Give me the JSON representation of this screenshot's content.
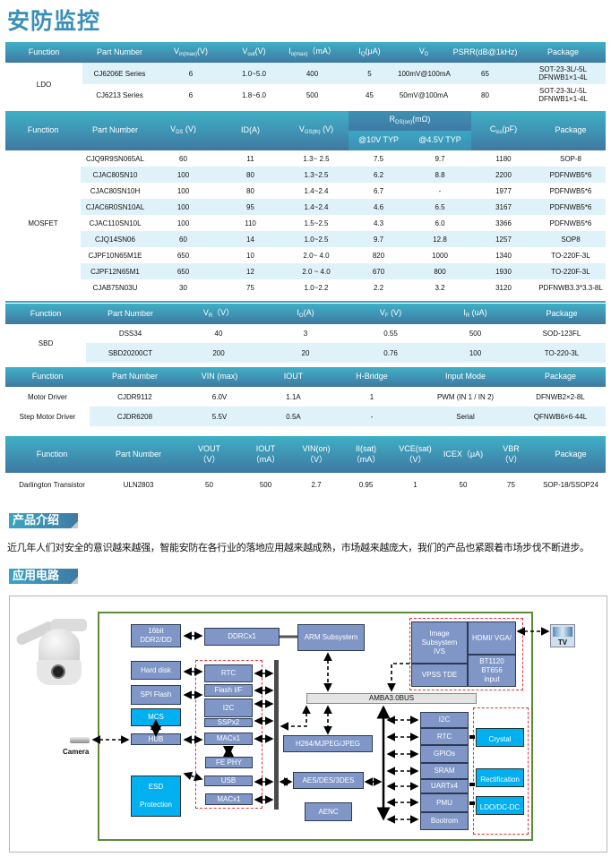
{
  "page_title": "安防监控",
  "tables": [
    {
      "id": "ldo",
      "function": "LDO",
      "headers": [
        {
          "label": "Function"
        },
        {
          "label": "Part Number"
        },
        {
          "label": "V",
          "sub": "in(max)",
          "unit": "(V)"
        },
        {
          "label": "V",
          "sub": "out",
          "unit": "(V)"
        },
        {
          "label": "I",
          "sub": "o(max)",
          "unit": "（mA）"
        },
        {
          "label": "I",
          "sub": "Q",
          "unit": "(μA)"
        },
        {
          "label": "V",
          "sub": "D"
        },
        {
          "label": "PSRR(dB@1kHz)"
        },
        {
          "label": "Package"
        }
      ],
      "rows": [
        [
          "CJ6206E Series",
          "6",
          "1.0~5.0",
          "400",
          "5",
          "100mV@100mA",
          "65",
          "SOT-23-3L/-5L\nDFNWB1×1-4L"
        ],
        [
          "CJ6213 Series",
          "6",
          "1.8~6.0",
          "500",
          "45",
          "50mV@100mA",
          "80",
          "SOT-23-3L/-5L\nDFNWB1×1-4L"
        ]
      ]
    },
    {
      "id": "mosfet",
      "function": "MOSFET",
      "headers": [
        {
          "label": "Function"
        },
        {
          "label": "Part  Number"
        },
        {
          "label": "V",
          "sub": "DS",
          "unit": " (V)"
        },
        {
          "label": "ID(A)"
        },
        {
          "label": "V",
          "sub": "GS(th)",
          "unit": " (V)"
        },
        {
          "label": "R",
          "sub": "DS(on)",
          "unit": "(mΩ)",
          "children": [
            {
              "label": "@10V  TYP"
            },
            {
              "label": "@4.5V TYP"
            }
          ]
        },
        {
          "label": "C",
          "sub": "iss",
          "unit": "(pF)"
        },
        {
          "label": "Package"
        }
      ],
      "rows": [
        [
          "CJQ9R9SN065AL",
          "60",
          "11",
          "1.3~ 2.5",
          "7.5",
          "9.7",
          "1180",
          "SOP-8"
        ],
        [
          "CJAC80SN10",
          "100",
          "80",
          "1.3~2.5",
          "6.2",
          "8.8",
          "2200",
          "PDFNWB5*6"
        ],
        [
          "CJAC80SN10H",
          "100",
          "80",
          "1.4~2.4",
          "6.7",
          "-",
          "1977",
          "PDFNWB5*6"
        ],
        [
          "CJAC6R0SN10AL",
          "100",
          "95",
          "1.4~2.4",
          "4.6",
          "6.5",
          "3167",
          "PDFNWB5*6"
        ],
        [
          "CJAC110SN10L",
          "100",
          "110",
          "1.5~2.5",
          "4.3",
          "6.0",
          "3366",
          "PDFNWB5*6"
        ],
        [
          "CJQ14SN06",
          "60",
          "14",
          "1.0~2.5",
          "9.7",
          "12.8",
          "1257",
          "SOP8"
        ],
        [
          "CJPF10N65M1E",
          "650",
          "10",
          "2.0~ 4.0",
          "820",
          "1000",
          "1340",
          "TO-220F-3L"
        ],
        [
          "CJPF12N65M1",
          "650",
          "12",
          "2.0 ~ 4.0",
          "670",
          "800",
          "1930",
          "TO-220F-3L"
        ],
        [
          "CJAB75N03U",
          "30",
          "75",
          "1.0~2.2",
          "2.2",
          "3.2",
          "3120",
          "PDFNWB3.3*3.3-8L"
        ]
      ]
    },
    {
      "id": "sbd",
      "function": "SBD",
      "headers": [
        {
          "label": "Function"
        },
        {
          "label": "Part Number"
        },
        {
          "label": "V",
          "sub": "R",
          "unit": "（V）"
        },
        {
          "label": "I",
          "sub": "O",
          "unit": "(A)"
        },
        {
          "label": "V",
          "sub": "F",
          "unit": " (V)"
        },
        {
          "label": "I",
          "sub": "R",
          "unit": " (uA)"
        },
        {
          "label": "Package"
        }
      ],
      "rows": [
        [
          "DSS34",
          "40",
          "3",
          "0.55",
          "500",
          "SOD-123FL"
        ],
        [
          "SBD20200CT",
          "200",
          "20",
          "0.76",
          "100",
          "TO-220-3L"
        ]
      ]
    },
    {
      "id": "motor",
      "headers": [
        {
          "label": "Function"
        },
        {
          "label": "Part Number"
        },
        {
          "label": "VIN (max)"
        },
        {
          "label": "IOUT"
        },
        {
          "label": "H-Bridge"
        },
        {
          "label": "Input Mode"
        },
        {
          "label": "Package"
        }
      ],
      "rows": [
        [
          "Motor Driver",
          "CJDR9112",
          "6.0V",
          "1.1A",
          "1",
          "PWM (IN 1 / IN 2)",
          "DFNWB2×2-8L"
        ],
        [
          "Step Motor Driver",
          "CJDR6208",
          "5.5V",
          "0.5A",
          "-",
          "Serial",
          "QFNWB6×6-44L"
        ]
      ]
    },
    {
      "id": "darlington",
      "headers": [
        {
          "label": "Function"
        },
        {
          "label": "Part Number"
        },
        {
          "label": "VOUT",
          "line2": "（V）"
        },
        {
          "label": "IOUT",
          "line2": "（mA）"
        },
        {
          "label": "VIN(on)",
          "line2": "（V）"
        },
        {
          "label": "II(sat)",
          "line2": "（mA）"
        },
        {
          "label": "VCE(sat)",
          "line2": "（V）"
        },
        {
          "label": "ICEX（μA)"
        },
        {
          "label": "VBR",
          "line2": "（V）"
        },
        {
          "label": "Package"
        }
      ],
      "rows": [
        [
          "Darlington Transistor",
          "ULN2803",
          "50",
          "500",
          "2.7",
          "0.95",
          "1",
          "50",
          "75",
          "SOP-18/SSOP24"
        ]
      ]
    }
  ],
  "sections": {
    "intro_title": "产品介绍",
    "intro_text": "近几年人们对安全的意识越来越强，智能安防在各行业的落地应用越来越成熟，市场越来越庞大，我们的产品也紧跟着市场步伐不断进步。",
    "circuit_title": "应用电路"
  },
  "diagram": {
    "camera_label": "Camera",
    "tv_label": "TV",
    "ddr": "16bit\nDDR2/DD",
    "ddrc": "DDRCx1",
    "arm": "ARM Subsystem",
    "hard_disk": "Hard disk",
    "spi_flash": "SPI  Flash",
    "mcs": "MCS",
    "hub": "HUB",
    "esd": "ESD\n\nProtection",
    "rtc": "RTC",
    "flash_if": "Flash I/F",
    "i2c": "I2C",
    "sspx2": "SSPx2",
    "macx1_a": "MACx1",
    "fe_phy": "FE PHY",
    "usb": "USB",
    "macx1_b": "MACx1",
    "image_subsystem": "Image\nSubsystem\nIVS",
    "vpss": "VPSS  TDE",
    "hdmi": "HDMI/  VGA/",
    "bt": "BT1120\nBT656\ninput",
    "amba": "AMBA3.0BUS",
    "h264": "H264/MJPEG/JPEG",
    "aes": "AES/DES/3DES",
    "aenc": "AENC",
    "r_i2c": "I2C",
    "r_rtc": "RTC",
    "r_gpios": "GPIOs",
    "r_sram": "SRAM",
    "r_uart": "UARTx4",
    "r_pmu": "PMU",
    "r_bootrom": "Bootrom",
    "crystal": "Crystal",
    "rectification": "Rectification",
    "ldo_dcdc": "LDO/DC-DC",
    "colors": {
      "block": "#7f96c6",
      "highlight_block": "#00b0f0",
      "soc_border": "#5a8a3a",
      "group_border": "#e8313a"
    }
  },
  "colors": {
    "title": "#3a8fb8",
    "header_top": "#3fb0c6",
    "header_bottom": "#3f78a2",
    "row_highlight": "#e0f2f9"
  }
}
